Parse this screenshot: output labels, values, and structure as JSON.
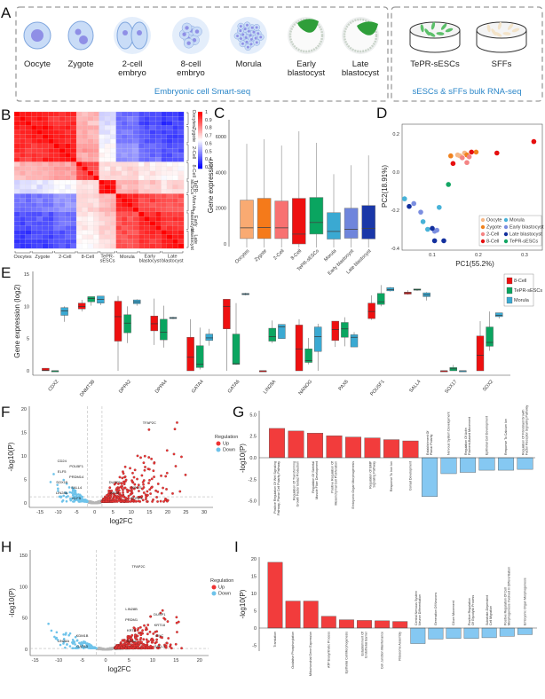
{
  "panels": {
    "A": "A",
    "B": "B",
    "C": "C",
    "D": "D",
    "E": "E",
    "F": "F",
    "G": "G",
    "H": "H",
    "I": "I"
  },
  "schematic": {
    "stages": [
      {
        "line1": "Oocyte",
        "line2": ""
      },
      {
        "line1": "Zygote",
        "line2": ""
      },
      {
        "line1": "2-cell",
        "line2": "embryo"
      },
      {
        "line1": "8-cell",
        "line2": "embryo"
      },
      {
        "line1": "Morula",
        "line2": ""
      },
      {
        "line1": "Early",
        "line2": "blastocyst"
      },
      {
        "line1": "Late",
        "line2": "blastocyst"
      }
    ],
    "cultures": [
      {
        "label": "TePR-sESCs"
      },
      {
        "label": "SFFs"
      }
    ],
    "caption_left": "Embryonic cell Smart-seq",
    "caption_right": "sESCs & sFFs bulk RNA-seq",
    "colors": {
      "caption": "#2a86c8",
      "cell": "#c9dcf7",
      "nucleus": "#8f8fe6",
      "icm": "#2f9e3a"
    }
  },
  "chart_data": [
    {
      "panel": "B",
      "type": "heatmap",
      "groups": [
        "Oocytes",
        "Zygote",
        "2-Cell",
        "8-Cell",
        "TePR-sESCs",
        "Morula",
        "Early blastocyst",
        "Late blastocyst"
      ],
      "block_correlation": [
        [
          0.97,
          0.95,
          0.93,
          0.75,
          0.6,
          0.45,
          0.4,
          0.38
        ],
        [
          0.95,
          0.96,
          0.94,
          0.76,
          0.62,
          0.46,
          0.42,
          0.4
        ],
        [
          0.93,
          0.94,
          0.96,
          0.78,
          0.65,
          0.5,
          0.45,
          0.42
        ],
        [
          0.75,
          0.76,
          0.78,
          0.9,
          0.7,
          0.7,
          0.68,
          0.66
        ],
        [
          0.6,
          0.62,
          0.65,
          0.7,
          0.98,
          0.75,
          0.72,
          0.7
        ],
        [
          0.45,
          0.46,
          0.5,
          0.7,
          0.75,
          0.95,
          0.9,
          0.88
        ],
        [
          0.4,
          0.42,
          0.45,
          0.68,
          0.72,
          0.9,
          0.95,
          0.93
        ],
        [
          0.38,
          0.4,
          0.42,
          0.66,
          0.7,
          0.88,
          0.93,
          0.96
        ]
      ],
      "colorbar": {
        "min": 0.3,
        "max": 1,
        "ticks": [
          "1",
          "0.9",
          "0.8",
          "0.7",
          "0.6",
          "0.5",
          "0.4",
          "0.3"
        ],
        "low": "#0000ff",
        "mid": "#ffffff",
        "high": "#ff0000"
      }
    },
    {
      "panel": "C",
      "type": "box",
      "ylabel": "Gene expression",
      "ylim": [
        0,
        7000
      ],
      "yticks": [
        "0",
        "2000",
        "4000",
        "6000"
      ],
      "categories": [
        "Oocytes",
        "Zygote",
        "2-Cell",
        "8-Cell",
        "TePR-sESCs",
        "Morula",
        "Early blastocyst",
        "Late blastocyst"
      ],
      "boxes": [
        {
          "q1": 300,
          "median": 900,
          "q3": 2450,
          "min": 0,
          "max": 5600,
          "color": "#f9aa72"
        },
        {
          "q1": 300,
          "median": 920,
          "q3": 2550,
          "min": 0,
          "max": 5850,
          "color": "#f57a1a"
        },
        {
          "q1": 300,
          "median": 900,
          "q3": 2400,
          "min": 0,
          "max": 5500,
          "color": "#f87171"
        },
        {
          "q1": 0,
          "median": 550,
          "q3": 2550,
          "min": 0,
          "max": 6300,
          "color": "#ee1010"
        },
        {
          "q1": 550,
          "median": 1200,
          "q3": 2600,
          "min": 0,
          "max": 5650,
          "color": "#0aa560"
        },
        {
          "q1": 270,
          "median": 700,
          "q3": 1750,
          "min": 0,
          "max": 3900,
          "color": "#3aa9d2"
        },
        {
          "q1": 320,
          "median": 820,
          "q3": 2000,
          "min": 0,
          "max": 4400,
          "color": "#6f85dc"
        },
        {
          "q1": 280,
          "median": 870,
          "q3": 2150,
          "min": 0,
          "max": 4950,
          "color": "#1a37a8"
        }
      ]
    },
    {
      "panel": "D",
      "type": "scatter",
      "xlabel": "PC1(55.2%)",
      "ylabel": "PC2(18.91%)",
      "xlim": [
        0.035,
        0.345
      ],
      "ylim": [
        -0.4,
        0.27
      ],
      "xticks": [
        "0.1",
        "0.2",
        "0.3"
      ],
      "yticks": [
        "0.2",
        "0.0",
        "-0.2",
        "-0.4"
      ],
      "legend_position": "bottom-right",
      "series": [
        {
          "name": "Oocyte",
          "color": "#f6b888",
          "points": [
            [
              0.155,
              0.09
            ],
            [
              0.16,
              0.085
            ],
            [
              0.17,
              0.1
            ]
          ]
        },
        {
          "name": "Zygote",
          "color": "#f0821e",
          "points": [
            [
              0.14,
              0.085
            ],
            [
              0.175,
              0.09
            ],
            [
              0.195,
              0.105
            ]
          ]
        },
        {
          "name": "2-Cell",
          "color": "#f48484",
          "points": [
            [
              0.165,
              0.075
            ],
            [
              0.18,
              0.08
            ],
            [
              0.175,
              0.05
            ]
          ]
        },
        {
          "name": "8-Cell",
          "color": "#e60f0f",
          "points": [
            [
              0.145,
              0.045
            ],
            [
              0.185,
              0.105
            ],
            [
              0.24,
              0.1
            ],
            [
              0.32,
              0.16
            ]
          ]
        },
        {
          "name": "Morula",
          "color": "#47b2d8",
          "points": [
            [
              0.04,
              -0.14
            ],
            [
              0.115,
              -0.185
            ],
            [
              0.08,
              -0.26
            ],
            [
              0.09,
              -0.3
            ]
          ]
        },
        {
          "name": "Early blastocyst",
          "color": "#7b8ee0",
          "points": [
            [
              0.06,
              -0.165
            ],
            [
              0.075,
              -0.21
            ],
            [
              0.105,
              -0.31
            ],
            [
              0.11,
              -0.305
            ]
          ]
        },
        {
          "name": "Late blastocyst",
          "color": "#13309e",
          "points": [
            [
              0.05,
              -0.18
            ],
            [
              0.1,
              -0.295
            ],
            [
              0.105,
              -0.36
            ],
            [
              0.125,
              -0.36
            ]
          ]
        },
        {
          "name": "TePR-sESCs",
          "color": "#13a664",
          "points": [
            [
              0.135,
              -0.065
            ]
          ]
        }
      ]
    },
    {
      "panel": "E",
      "type": "box",
      "ylabel": "Gene expression (log2)",
      "ylim": [
        0,
        15
      ],
      "yticks": [
        "0",
        "5",
        "10",
        "15"
      ],
      "legend_position": "top-right",
      "groups": [
        {
          "name": "8-Cell",
          "color": "#ee1010"
        },
        {
          "name": "TePR-sESCs",
          "color": "#0aa560"
        },
        {
          "name": "Morula",
          "color": "#3aa9d2"
        }
      ],
      "genes": [
        {
          "gene": "CDX2",
          "boxes": [
            [
              0,
              0.1,
              0.4,
              0,
              0.4
            ],
            [
              0,
              0,
              0,
              0,
              0
            ],
            [
              8.6,
              9.3,
              9.8,
              7.6,
              10
            ]
          ]
        },
        {
          "gene": "DNMT3B",
          "boxes": [
            [
              9.6,
              10,
              10.5,
              9.2,
              11
            ],
            [
              10.7,
              11.2,
              11.5,
              10.1,
              11.5
            ],
            [
              10.5,
              11.1,
              11.6,
              10.2,
              11.6
            ]
          ]
        },
        {
          "gene": "DPPA2",
          "boxes": [
            [
              4.6,
              8.4,
              10.8,
              0,
              11.6
            ],
            [
              5.9,
              7.4,
              8.7,
              4.3,
              10
            ],
            [
              10.4,
              10.7,
              11,
              10.1,
              11.1
            ]
          ]
        },
        {
          "gene": "DPPA4",
          "boxes": [
            [
              6.2,
              7.3,
              8.5,
              4,
              11.2
            ],
            [
              4.8,
              6,
              8,
              3.6,
              10.1
            ],
            [
              8.1,
              8.2,
              8.3,
              8,
              8.4
            ]
          ]
        },
        {
          "gene": "GATA4",
          "boxes": [
            [
              0,
              2.1,
              5.2,
              0,
              8
            ],
            [
              0.5,
              1,
              3.9,
              0.2,
              6.7
            ],
            [
              4.7,
              5.1,
              5.7,
              3.9,
              6.5
            ]
          ]
        },
        {
          "gene": "GATA6",
          "boxes": [
            [
              6.5,
              10,
              11.1,
              0,
              11.1
            ],
            [
              1,
              1.1,
              5.7,
              0.9,
              10.5
            ],
            [
              11.8,
              11.9,
              12,
              11.7,
              12.1
            ]
          ]
        },
        {
          "gene": "LIN28A",
          "boxes": [
            [
              0,
              0,
              0,
              0,
              0
            ],
            [
              4.6,
              5.3,
              6.6,
              4.3,
              7.8
            ],
            [
              5,
              6.8,
              7.2,
              5,
              7.2
            ]
          ]
        },
        {
          "gene": "NANOG",
          "boxes": [
            [
              0,
              3.4,
              7.1,
              0,
              8
            ],
            [
              1.3,
              1.6,
              3.4,
              1,
              5.1
            ],
            [
              3,
              5.3,
              6.8,
              0,
              7.3
            ]
          ]
        },
        {
          "gene": "PAX6",
          "boxes": [
            [
              4.7,
              6.4,
              7.7,
              3.7,
              7.7
            ],
            [
              5.2,
              6.5,
              7.5,
              3.8,
              8.3
            ],
            [
              3.7,
              5.2,
              5.6,
              3.7,
              6
            ]
          ]
        },
        {
          "gene": "POU5F1",
          "boxes": [
            [
              8.1,
              9.2,
              10.5,
              7.9,
              11.7
            ],
            [
              10.3,
              10.7,
              12,
              10,
              13.3
            ],
            [
              12.4,
              12.6,
              12.9,
              12.3,
              13
            ]
          ]
        },
        {
          "gene": "SALL4",
          "boxes": [
            [
              11.9,
              12.1,
              12.2,
              11.8,
              12.5
            ],
            [
              12.5,
              12.6,
              12.7,
              12.4,
              12.7
            ],
            [
              11.5,
              11.8,
              12.1,
              10.9,
              12.2
            ]
          ]
        },
        {
          "gene": "SOX17",
          "boxes": [
            [
              0,
              0,
              0,
              0,
              0
            ],
            [
              0,
              0.3,
              0.5,
              0,
              0.9
            ],
            [
              0,
              0,
              0,
              0,
              0
            ]
          ]
        },
        {
          "gene": "SOX2",
          "boxes": [
            [
              0,
              2.4,
              5.4,
              0,
              7.7
            ],
            [
              3.8,
              4.4,
              6.8,
              3.1,
              9.2
            ],
            [
              8.4,
              8.6,
              9,
              8.1,
              9
            ]
          ]
        }
      ]
    },
    {
      "panel": "F",
      "type": "scatter",
      "xlabel": "log2FC",
      "ylabel": "-log10(P)",
      "xlim": [
        -17,
        33
      ],
      "ylim": [
        -1,
        21
      ],
      "xticks": [
        "-15",
        "-10",
        "-5",
        "0",
        "5",
        "10",
        "15",
        "20",
        "25",
        "30"
      ],
      "yticks": [
        "0",
        "5",
        "10",
        "15",
        "20"
      ],
      "fc_threshold": 2,
      "p_threshold": 1.3,
      "legend": {
        "title": "Regulation",
        "items": [
          {
            "name": "Up",
            "color": "#ee3333"
          },
          {
            "name": "Down",
            "color": "#6ec3ea"
          }
        ],
        "position": "right"
      },
      "labeled_genes": [
        "TFAP2C",
        "DUSP4",
        "KRT8",
        "WNT5",
        "DUSP1",
        "KLF5",
        "LIN28A",
        "SALL4",
        "SOX15",
        "PRDM14",
        "ELF5",
        "POU5F1",
        "CD24"
      ]
    },
    {
      "panel": "G",
      "type": "bar",
      "ylabel": "-log10(P)",
      "ylim": [
        -5.8,
        5.5
      ],
      "yticks": [
        "5.0",
        "2.5",
        "0.0",
        "-2.5",
        "-5.0"
      ],
      "up_color": "#f23c3c",
      "down_color": "#85c8f2",
      "categories": [
        "Positive Regulation Of Wnt Signaling Pathway, Planar Cell Polarity Pathway",
        "Regulation Of Transforming Growth Factor Beta2 Production",
        "Regulation Of Skeletal Muscle Fiber Development",
        "Positive Regulation Of Mesenchymal Cell Proliferation",
        "Embryonic Organ Morphogenesis",
        "Regulation Of BMP Signaling Pathway",
        "Response To Iron Ion",
        "Gonad Development",
        "Establishment Of Planar Polarity",
        "Nervous System Development",
        "Regulation Of Actin Filament-Based Movement",
        "Epithelial Cell Development",
        "Response To Calcium Ion",
        "Regulation Of Fibroblast Growth Factor Receptor Signaling Pathway"
      ],
      "values": [
        3.4,
        3.1,
        2.85,
        2.55,
        2.4,
        2.3,
        2.1,
        1.95,
        -4.5,
        -1.85,
        -1.7,
        -1.45,
        -1.45,
        -1.35
      ]
    },
    {
      "panel": "H",
      "type": "scatter",
      "xlabel": "log2FC",
      "ylabel": "-log10(P)",
      "xlim": [
        -16,
        22
      ],
      "ylim": [
        -8,
        160
      ],
      "xticks": [
        "-15",
        "-10",
        "-5",
        "0",
        "5",
        "10",
        "15",
        "20"
      ],
      "yticks": [
        "0",
        "50",
        "100",
        "150"
      ],
      "fc_threshold": 2,
      "p_threshold": 1.3,
      "legend": {
        "title": "Regulation",
        "items": [
          {
            "name": "Up",
            "color": "#ee3333"
          },
          {
            "name": "Down",
            "color": "#6ec3ea"
          }
        ],
        "position": "right"
      },
      "labeled_genes": [
        "TFAP2C",
        "GATA3",
        "LIN28A",
        "KDM1B",
        "SALL4",
        "SOX2",
        "MYC",
        "KRT8",
        "KRT18",
        "PRDM1",
        "DUSP1",
        "LIN28B"
      ]
    },
    {
      "panel": "I",
      "type": "bar",
      "ylabel": "-log10(P)",
      "ylim": [
        -6,
        20.5
      ],
      "yticks": [
        "20",
        "15",
        "10",
        "5",
        "0",
        "-5"
      ],
      "up_color": "#f23c3c",
      "down_color": "#85c8f2",
      "categories": [
        "Translation",
        "Oxidative Phosphorylation",
        "Mitochondrial Gene Expression",
        "ATP Biosynthetic Process",
        "Epithelial Cell Morphogenesis",
        "Establishment Of Endothelial Barrier",
        "Cell Junction Maintenance",
        "Ribosome Assembly",
        "Central Nervous System Neuron Differentiation",
        "Generation Of Neurons",
        "Cilium Movement",
        "Positive Regulation Of Glycolytic Process",
        "Substrate-Dependent Cell Migration",
        "Positive Regulation Of Cell Morphogenesis Involved In Differentiation",
        "Embryonic Organ Morphogenesis"
      ],
      "values": [
        19,
        7.8,
        7.8,
        3.4,
        2.4,
        2.2,
        2.1,
        1.9,
        -4.5,
        -3.2,
        -3.0,
        -3.0,
        -2.8,
        -2.4,
        -1.9
      ]
    }
  ]
}
